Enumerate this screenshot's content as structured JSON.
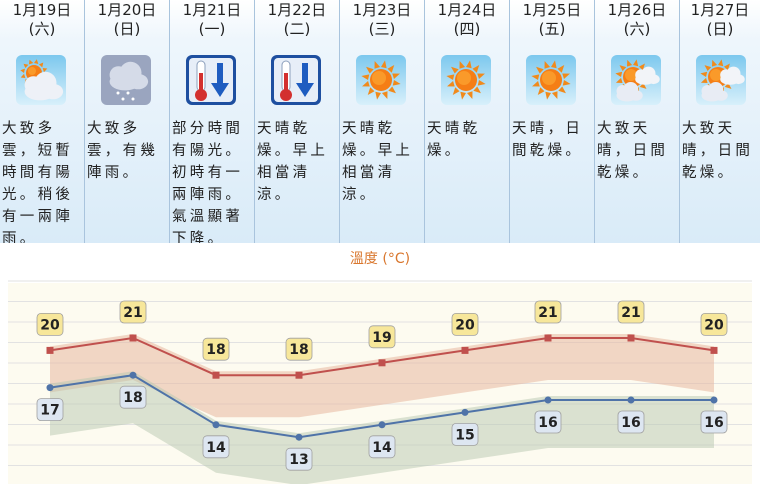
{
  "days": [
    {
      "date": "1月19日",
      "weekday": "(六)",
      "icon": "cloudy-with-sunny-intervals-icon",
      "desc": "大致多雲，短暫時間有陽光。稍後有一兩陣雨。"
    },
    {
      "date": "1月20日",
      "weekday": "(日)",
      "icon": "cloudy-light-rain-icon",
      "desc": "大致多雲，有幾陣雨。"
    },
    {
      "date": "1月21日",
      "weekday": "(一)",
      "icon": "cold-thermometer-icon",
      "desc": "部分時間有陽光。初時有一兩陣雨。氣溫顯著下降。"
    },
    {
      "date": "1月22日",
      "weekday": "(二)",
      "icon": "cold-thermometer-icon",
      "desc": "天晴乾燥。早上相當清涼。"
    },
    {
      "date": "1月23日",
      "weekday": "(三)",
      "icon": "sunny-icon",
      "desc": "天晴乾燥。早上相當清涼。"
    },
    {
      "date": "1月24日",
      "weekday": "(四)",
      "icon": "sunny-icon",
      "desc": "天晴乾燥。"
    },
    {
      "date": "1月25日",
      "weekday": "(五)",
      "icon": "sunny-icon",
      "desc": "天晴，日間乾燥。"
    },
    {
      "date": "1月26日",
      "weekday": "(六)",
      "icon": "sunny-periods-icon",
      "desc": "大致天晴，日間乾燥。"
    },
    {
      "date": "1月27日",
      "weekday": "(日)",
      "icon": "sunny-periods-icon",
      "desc": "大致天晴，日間乾燥。"
    }
  ],
  "chart_title": "溫度 (°C)",
  "colors": {
    "max": "#c0504d",
    "min": "#4f73a8",
    "label_max_bg": "#f7e79a",
    "label_min_bg": "#dde6f1",
    "title": "#d9772e"
  },
  "chart_data": {
    "type": "line",
    "title": "溫度 (°C)",
    "categories": [
      "1月19日",
      "1月20日",
      "1月21日",
      "1月22日",
      "1月23日",
      "1月24日",
      "1月25日",
      "1月26日",
      "1月27日"
    ],
    "series": [
      {
        "values": [
          20,
          21,
          18,
          18,
          19,
          20,
          21,
          21,
          20
        ]
      },
      {
        "values": [
          17,
          18,
          14,
          13,
          14,
          15,
          16,
          16,
          16
        ]
      }
    ]
  }
}
